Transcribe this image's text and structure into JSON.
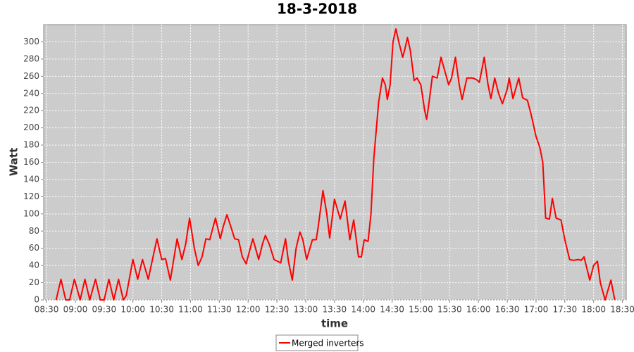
{
  "chart_data": {
    "type": "line",
    "title": "18-3-2018",
    "x_label": "time",
    "y_label": "Watt",
    "x": [
      "08:40",
      "08:45",
      "08:50",
      "08:54",
      "08:59",
      "09:05",
      "09:10",
      "09:15",
      "09:21",
      "09:26",
      "09:30",
      "09:35",
      "09:40",
      "09:45",
      "09:50",
      "09:53",
      "10:00",
      "10:05",
      "10:10",
      "10:16",
      "10:19",
      "10:25",
      "10:30",
      "10:34",
      "10:39",
      "10:46",
      "10:51",
      "10:55",
      "10:59",
      "11:04",
      "11:08",
      "11:12",
      "11:16",
      "11:20",
      "11:26",
      "11:31",
      "11:34",
      "11:38",
      "11:42",
      "11:46",
      "11:50",
      "11:54",
      "11:58",
      "12:01",
      "12:05",
      "12:11",
      "12:15",
      "12:18",
      "12:22",
      "12:27",
      "12:34",
      "12:39",
      "12:42",
      "12:46",
      "12:50",
      "12:54",
      "12:57",
      "13:01",
      "13:07",
      "13:11",
      "13:13",
      "13:18",
      "13:22",
      "13:25",
      "13:30",
      "13:36",
      "13:41",
      "13:46",
      "13:50",
      "13:55",
      "13:58",
      "14:01",
      "14:05",
      "14:08",
      "14:11",
      "14:16",
      "14:20",
      "14:23",
      "14:25",
      "14:28",
      "14:31",
      "14:34",
      "14:37",
      "14:41",
      "14:43",
      "14:46",
      "14:49",
      "14:53",
      "14:56",
      "15:00",
      "15:04",
      "15:06",
      "15:08",
      "15:12",
      "15:17",
      "15:21",
      "15:24",
      "15:29",
      "15:32",
      "15:36",
      "15:40",
      "15:43",
      "15:48",
      "15:54",
      "15:58",
      "16:01",
      "16:06",
      "16:10",
      "16:13",
      "16:17",
      "16:21",
      "16:25",
      "16:30",
      "16:32",
      "16:36",
      "16:42",
      "16:46",
      "16:51",
      "16:55",
      "17:00",
      "17:04",
      "17:07",
      "17:10",
      "17:14",
      "17:17",
      "17:21",
      "17:26",
      "17:30",
      "17:35",
      "17:39",
      "17:44",
      "17:47",
      "17:50",
      "17:56",
      "18:00",
      "18:04",
      "18:07",
      "18:12",
      "18:18",
      "18:22"
    ],
    "series": [
      {
        "name": "Merged inverters",
        "color": "#ff0000",
        "values": [
          0,
          24,
          0,
          0,
          24,
          0,
          24,
          0,
          24,
          0,
          0,
          24,
          0,
          24,
          0,
          5,
          47,
          24,
          47,
          24,
          40,
          71,
          47,
          48,
          23,
          71,
          47,
          65,
          95,
          60,
          40,
          50,
          71,
          70,
          95,
          71,
          85,
          99,
          85,
          71,
          70,
          50,
          42,
          55,
          71,
          47,
          65,
          75,
          65,
          47,
          43,
          71,
          45,
          23,
          60,
          79,
          70,
          47,
          70,
          70,
          85,
          127,
          100,
          72,
          117,
          94,
          115,
          70,
          93,
          50,
          50,
          70,
          68,
          100,
          165,
          230,
          258,
          250,
          233,
          250,
          300,
          315,
          300,
          282,
          290,
          305,
          290,
          255,
          258,
          250,
          220,
          210,
          225,
          260,
          258,
          282,
          270,
          250,
          258,
          282,
          250,
          233,
          258,
          258,
          256,
          253,
          282,
          250,
          234,
          258,
          240,
          228,
          245,
          258,
          234,
          258,
          235,
          232,
          215,
          190,
          177,
          160,
          95,
          94,
          118,
          95,
          93,
          70,
          47,
          46,
          47,
          46,
          50,
          23,
          40,
          45,
          20,
          0,
          23,
          0
        ]
      }
    ],
    "xlim": [
      "08:27",
      "18:34"
    ],
    "xticks": [
      "08:30",
      "09:00",
      "09:30",
      "10:00",
      "10:30",
      "11:00",
      "11:30",
      "12:00",
      "12:30",
      "13:00",
      "13:30",
      "14:00",
      "14:30",
      "15:00",
      "15:30",
      "16:00",
      "16:30",
      "17:00",
      "17:30",
      "18:00",
      "18:30"
    ],
    "ylim": [
      0,
      320
    ],
    "yticks": [
      0,
      20,
      40,
      60,
      80,
      100,
      120,
      140,
      160,
      180,
      200,
      220,
      240,
      260,
      280,
      300
    ],
    "grid": true,
    "legend": "bottom"
  }
}
